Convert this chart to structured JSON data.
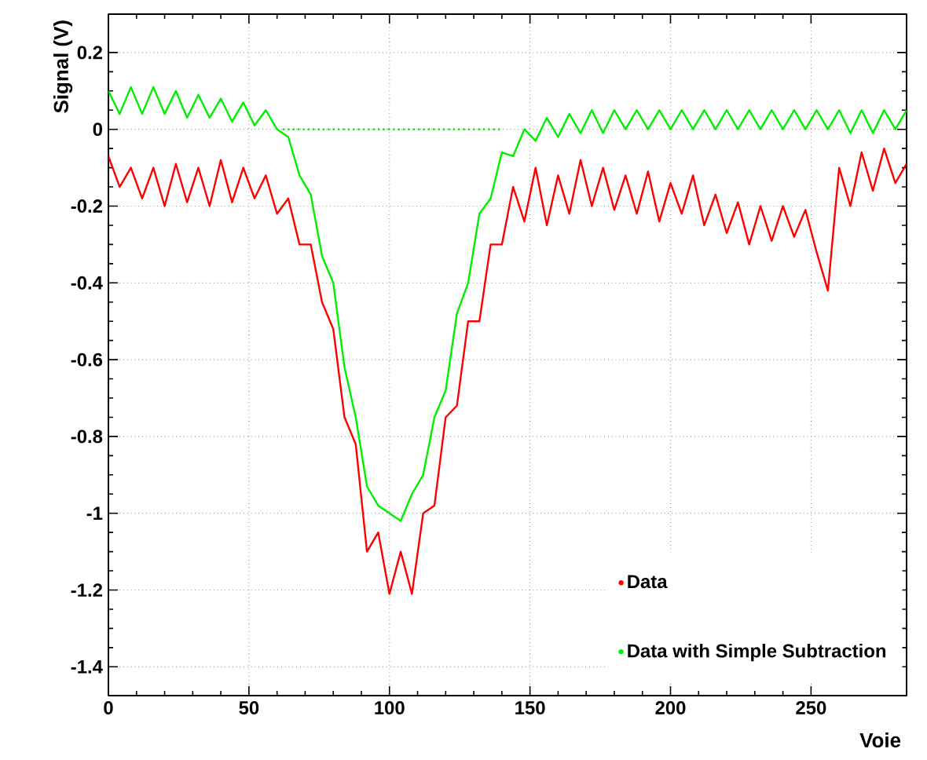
{
  "chart_data": {
    "type": "line",
    "xlabel": "Voie",
    "ylabel": "Signal (V)",
    "xlim": [
      0,
      284
    ],
    "ylim": [
      -1.475,
      0.3
    ],
    "xticks": [
      0,
      50,
      100,
      150,
      200,
      250
    ],
    "yticks": [
      -1.4,
      -1.2,
      -1,
      -0.8,
      -0.6,
      -0.4,
      -0.2,
      0,
      0.2
    ],
    "grid": true,
    "legend": "bottom right",
    "line_style": "solid",
    "x": [
      0,
      4,
      8,
      12,
      16,
      20,
      24,
      28,
      32,
      36,
      40,
      44,
      48,
      52,
      56,
      60,
      64,
      68,
      72,
      76,
      80,
      84,
      88,
      92,
      96,
      100,
      104,
      108,
      112,
      116,
      120,
      124,
      128,
      132,
      136,
      140,
      144,
      148,
      152,
      156,
      160,
      164,
      168,
      172,
      176,
      180,
      184,
      188,
      192,
      196,
      200,
      204,
      208,
      212,
      216,
      220,
      224,
      228,
      232,
      236,
      240,
      244,
      248,
      252,
      256,
      260,
      264,
      268,
      272,
      276,
      280,
      284
    ],
    "series": [
      {
        "name": "Data",
        "color": "#ff0000",
        "values": [
          -0.07,
          -0.15,
          -0.1,
          -0.18,
          -0.1,
          -0.2,
          -0.09,
          -0.19,
          -0.1,
          -0.2,
          -0.08,
          -0.19,
          -0.1,
          -0.18,
          -0.12,
          -0.22,
          -0.18,
          -0.3,
          -0.3,
          -0.45,
          -0.52,
          -0.75,
          -0.82,
          -1.1,
          -1.05,
          -1.21,
          -1.1,
          -1.21,
          -1.0,
          -0.98,
          -0.75,
          -0.72,
          -0.5,
          -0.5,
          -0.3,
          -0.3,
          -0.15,
          -0.24,
          -0.1,
          -0.25,
          -0.12,
          -0.22,
          -0.08,
          -0.2,
          -0.1,
          -0.21,
          -0.12,
          -0.22,
          -0.11,
          -0.24,
          -0.14,
          -0.22,
          -0.12,
          -0.25,
          -0.17,
          -0.27,
          -0.19,
          -0.3,
          -0.2,
          -0.29,
          -0.2,
          -0.28,
          -0.21,
          -0.32,
          -0.42,
          -0.1,
          -0.2,
          -0.06,
          -0.16,
          -0.05,
          -0.14,
          -0.09
        ]
      },
      {
        "name": "Data with Simple Subtraction",
        "color": "#00ee00",
        "values": [
          0.1,
          0.04,
          0.11,
          0.04,
          0.11,
          0.04,
          0.1,
          0.03,
          0.09,
          0.03,
          0.08,
          0.02,
          0.07,
          0.01,
          0.05,
          0.0,
          -0.02,
          -0.12,
          -0.17,
          -0.33,
          -0.4,
          -0.62,
          -0.75,
          -0.93,
          -0.98,
          -1.0,
          -1.02,
          -0.95,
          -0.9,
          -0.75,
          -0.68,
          -0.48,
          -0.4,
          -0.22,
          -0.18,
          -0.06,
          -0.07,
          0.0,
          -0.03,
          0.03,
          -0.02,
          0.04,
          -0.01,
          0.05,
          -0.01,
          0.05,
          0.0,
          0.05,
          0.0,
          0.05,
          0.0,
          0.05,
          0.0,
          0.05,
          0.0,
          0.05,
          0.0,
          0.05,
          0.0,
          0.05,
          0.0,
          0.05,
          0.0,
          0.05,
          0.0,
          0.05,
          -0.01,
          0.05,
          -0.01,
          0.05,
          0.0,
          0.05
        ]
      },
      {
        "color": "#00ee00",
        "line_style": "dotted",
        "x": [
          62,
          140
        ],
        "values": [
          0,
          0
        ]
      }
    ]
  }
}
